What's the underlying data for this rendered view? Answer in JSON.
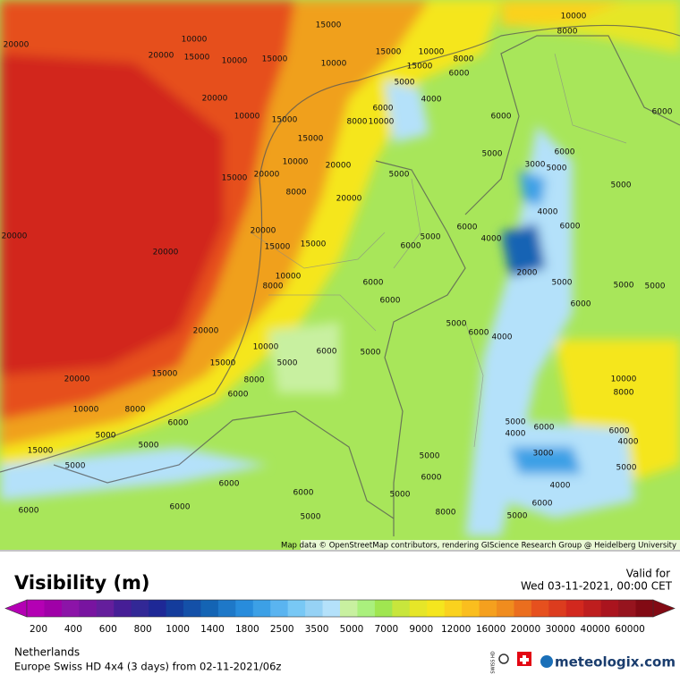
{
  "header": {
    "title": "Visibility (m)",
    "valid_label": "Valid for",
    "valid_time": "Wed 03-11-2021, 00:00 CET"
  },
  "footer": {
    "region": "Netherlands",
    "model": "Europe Swiss HD 4x4 (3 days) from 02-11-2021/06z",
    "brand": "meteologix.com",
    "badge": "SWISS HD"
  },
  "map": {
    "attribution": "Map data © OpenStreetMap contributors, rendering GIScience Research Group @ Heidelberg University",
    "contour_labels": [
      10000,
      20000,
      15000,
      20000,
      10000,
      15000,
      15000,
      10000,
      15000,
      10000,
      15000,
      6000,
      8000,
      10000,
      8000,
      20000,
      10000,
      15000,
      5000,
      4000,
      6000,
      8000,
      10000,
      6000,
      6000,
      15000,
      10000,
      20000,
      20000,
      15000,
      8000,
      20000,
      5000,
      5000,
      3000,
      5000,
      6000,
      5000,
      4000,
      6000,
      20000,
      20000,
      20000,
      15000,
      15000,
      5000,
      6000,
      6000,
      4000,
      2000,
      10000,
      8000,
      6000,
      6000,
      5000,
      5000,
      5000,
      6000,
      5000,
      6000,
      4000,
      20000,
      10000,
      6000,
      5000,
      5000,
      15000,
      15000,
      8000,
      6000,
      20000,
      10000,
      8000,
      10000,
      8000,
      6000,
      5000,
      5000,
      15000,
      5000,
      4000,
      6000,
      3000,
      6000,
      4000,
      5000,
      5000,
      6000,
      5000,
      6000,
      6000,
      5000,
      4000,
      6000,
      6000,
      6000,
      5000,
      8000,
      5000
    ]
  },
  "colorbar": {
    "ticks": [
      200,
      400,
      600,
      800,
      1000,
      1400,
      1800,
      2500,
      3500,
      5000,
      7000,
      9000,
      12000,
      16000,
      20000,
      30000,
      40000,
      60000
    ],
    "colors": [
      "#b400b4",
      "#a000a8",
      "#8c14a8",
      "#7814a0",
      "#641e9c",
      "#461e96",
      "#322896",
      "#1e2896",
      "#143c9c",
      "#1450a8",
      "#1464b4",
      "#1e78c8",
      "#288cdc",
      "#3ca0e6",
      "#5ab4f0",
      "#78c8f5",
      "#96d2f5",
      "#b4e1fa",
      "#c8f0a0",
      "#aaf07d",
      "#a0e650",
      "#c8e63c",
      "#e6e628",
      "#f5e61e",
      "#fad21e",
      "#fabe1e",
      "#f5a01e",
      "#f08c1e",
      "#eb6e1e",
      "#e6501e",
      "#dc3c1e",
      "#d2281e",
      "#be1e1e",
      "#aa141e",
      "#96141e",
      "#820a14"
    ]
  }
}
